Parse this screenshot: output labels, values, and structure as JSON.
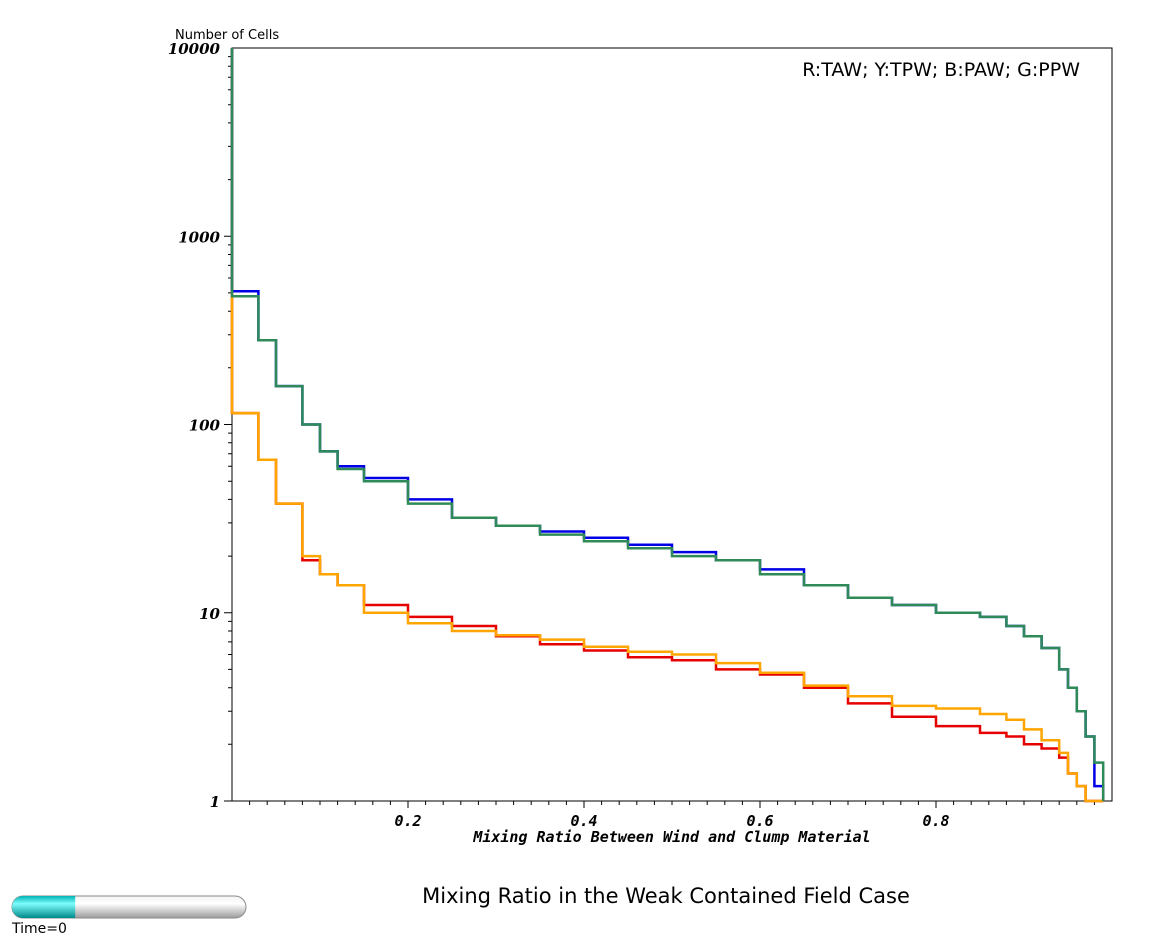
{
  "chart_data": {
    "type": "line",
    "title": "Mixing Ratio in the Weak Contained Field Case",
    "xlabel": "Mixing Ratio Between Wind and Clump Material",
    "ylabel": "Number of Cells",
    "legend_text": "R:TAW; Y:TPW; B:PAW; G:PPW",
    "legend_position": "top-right",
    "xlim": [
      0,
      1
    ],
    "ylim": [
      1,
      10000
    ],
    "y_scale": "log",
    "x_ticks": [
      "0.2",
      "0.4",
      "0.6",
      "0.8"
    ],
    "y_ticks": [
      "1",
      "10",
      "100",
      "1000",
      "10000"
    ],
    "grid": false,
    "x": [
      0.01,
      0.03,
      0.05,
      0.08,
      0.1,
      0.12,
      0.15,
      0.2,
      0.25,
      0.3,
      0.35,
      0.4,
      0.45,
      0.5,
      0.55,
      0.6,
      0.65,
      0.7,
      0.75,
      0.8,
      0.85,
      0.88,
      0.9,
      0.92,
      0.94,
      0.95,
      0.96,
      0.97,
      0.98,
      0.99
    ],
    "series": [
      {
        "color": "#e60000",
        "values": [
          115,
          65,
          38,
          19,
          16,
          14,
          11,
          9.5,
          8.5,
          7.5,
          6.8,
          6.3,
          5.8,
          5.6,
          5.0,
          4.7,
          4.0,
          3.3,
          2.8,
          2.5,
          2.3,
          2.2,
          2.0,
          1.9,
          1.7,
          1.4,
          1.2,
          1.0,
          null,
          null
        ]
      },
      {
        "color": "#ffa500",
        "values": [
          115,
          65,
          38,
          20,
          16,
          14,
          10,
          8.8,
          8.0,
          7.6,
          7.2,
          6.6,
          6.2,
          6.0,
          5.4,
          4.8,
          4.1,
          3.6,
          3.2,
          3.1,
          2.9,
          2.7,
          2.4,
          2.1,
          1.8,
          1.4,
          1.2,
          1.0,
          null,
          null
        ]
      },
      {
        "color": "#0000e6",
        "values": [
          510,
          280,
          160,
          100,
          72,
          60,
          52,
          40,
          32,
          29,
          27,
          25,
          23,
          21,
          19,
          17,
          14,
          12,
          11,
          10,
          9.5,
          8.5,
          7.5,
          6.5,
          5.0,
          4.0,
          3.0,
          2.2,
          1.2,
          1.0
        ]
      },
      {
        "color": "#2e8b57",
        "values": [
          480,
          280,
          160,
          100,
          72,
          58,
          50,
          38,
          32,
          29,
          26,
          24,
          22,
          20,
          19,
          16,
          14,
          12,
          11,
          10,
          9.5,
          8.5,
          7.5,
          6.5,
          5.0,
          4.0,
          3.0,
          2.2,
          1.6,
          1.0
        ]
      }
    ]
  },
  "ui": {
    "time_label": "Time=0",
    "time_slider_fraction": 0.27,
    "slider_fill_color": "#00e5e5"
  }
}
